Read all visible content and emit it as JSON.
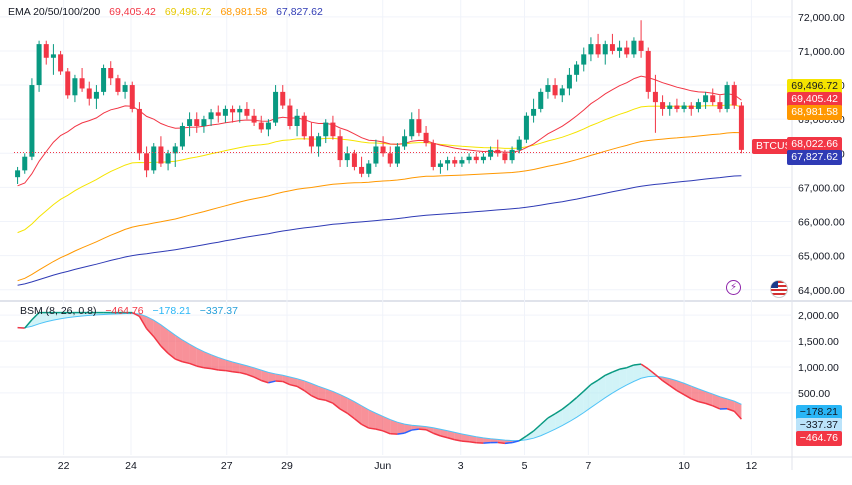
{
  "chart_data": [
    {
      "type": "candlestick",
      "symbol": "BTCUSD",
      "yticks": [
        "72,000.00",
        "71,000.00",
        "70,000.00",
        "69,000.00",
        "68,000.00",
        "67,000.00",
        "66,000.00",
        "65,000.00",
        "64,000.00"
      ],
      "ylim": [
        63700,
        72200
      ],
      "xticks": [
        "22",
        "24",
        "27",
        "29",
        "Jun",
        "3",
        "5",
        "7",
        "10",
        "12"
      ],
      "grid": true,
      "ema_legend": {
        "label": "EMA 20/50/100/200",
        "values": [
          "69,405.42",
          "69,496.72",
          "68,981.58",
          "67,827.62"
        ],
        "colors": [
          "#f23645",
          "#f5e400",
          "#ff9800",
          "#2f3bb5"
        ]
      },
      "price_labels": [
        {
          "text": "69,496.72",
          "bg": "#f5e400",
          "fg": "#131722"
        },
        {
          "text": "69,405.42",
          "bg": "#f23645",
          "fg": "#ffffff"
        },
        {
          "text": "68,981.58",
          "bg": "#ff9800",
          "fg": "#ffffff"
        },
        {
          "text": "68,022.66",
          "bg": "#f23645",
          "fg": "#ffffff"
        },
        {
          "text": "67,827.62",
          "bg": "#2f3bb5",
          "fg": "#ffffff"
        }
      ],
      "last_price": 68022.66,
      "candles": [
        [
          67300,
          67600,
          67100,
          67500
        ],
        [
          67500,
          68000,
          67400,
          67900
        ],
        [
          67900,
          70200,
          67800,
          70000
        ],
        [
          70000,
          71300,
          69800,
          71200
        ],
        [
          71200,
          71300,
          70600,
          70800
        ],
        [
          70800,
          71200,
          70300,
          70900
        ],
        [
          70900,
          71000,
          70300,
          70400
        ],
        [
          70400,
          70500,
          69600,
          69700
        ],
        [
          69700,
          70300,
          69500,
          70200
        ],
        [
          70200,
          70500,
          69800,
          69900
        ],
        [
          69900,
          70100,
          69400,
          69600
        ],
        [
          69600,
          70000,
          69300,
          69800
        ],
        [
          69800,
          70600,
          69700,
          70500
        ],
        [
          70500,
          70700,
          70000,
          70200
        ],
        [
          70200,
          70300,
          69700,
          69800
        ],
        [
          69800,
          70100,
          69600,
          70000
        ],
        [
          70000,
          70100,
          69200,
          69300
        ],
        [
          69300,
          69500,
          67800,
          68000
        ],
        [
          68000,
          68200,
          67300,
          67500
        ],
        [
          67500,
          68300,
          67400,
          68200
        ],
        [
          68200,
          68500,
          67600,
          67700
        ],
        [
          67700,
          68100,
          67500,
          68000
        ],
        [
          68000,
          68300,
          67600,
          68200
        ],
        [
          68200,
          68900,
          68100,
          68800
        ],
        [
          68800,
          69200,
          68500,
          69000
        ],
        [
          69000,
          69200,
          68600,
          68800
        ],
        [
          68800,
          69100,
          68600,
          69000
        ],
        [
          69000,
          69300,
          68800,
          69200
        ],
        [
          69200,
          69400,
          68900,
          69100
        ],
        [
          69100,
          69400,
          68900,
          69300
        ],
        [
          69300,
          69400,
          68900,
          69200
        ],
        [
          69200,
          69400,
          68900,
          69300
        ],
        [
          69300,
          69500,
          69000,
          69100
        ],
        [
          69100,
          69300,
          68800,
          68900
        ],
        [
          68900,
          69100,
          68600,
          68700
        ],
        [
          68700,
          69000,
          68500,
          68900
        ],
        [
          68900,
          70000,
          68800,
          69800
        ],
        [
          69800,
          70000,
          69300,
          69400
        ],
        [
          69400,
          69600,
          68700,
          68800
        ],
        [
          68800,
          69300,
          68500,
          69100
        ],
        [
          69100,
          69200,
          68400,
          68500
        ],
        [
          68500,
          68900,
          68000,
          68200
        ],
        [
          68200,
          68600,
          67900,
          68500
        ],
        [
          68500,
          69000,
          68300,
          68900
        ],
        [
          68900,
          69100,
          68400,
          68500
        ],
        [
          68500,
          68700,
          67600,
          67800
        ],
        [
          67800,
          68200,
          67600,
          68000
        ],
        [
          68000,
          68100,
          67500,
          67600
        ],
        [
          67600,
          67900,
          67300,
          67400
        ],
        [
          67400,
          67800,
          67300,
          67700
        ],
        [
          67700,
          68400,
          67600,
          68200
        ],
        [
          68200,
          68500,
          67900,
          68000
        ],
        [
          68000,
          68200,
          67600,
          67700
        ],
        [
          67700,
          68300,
          67600,
          68200
        ],
        [
          68200,
          68700,
          68100,
          68500
        ],
        [
          68500,
          69200,
          68400,
          69000
        ],
        [
          69000,
          69300,
          68500,
          68600
        ],
        [
          68600,
          68800,
          68200,
          68300
        ],
        [
          68300,
          68400,
          67500,
          67600
        ],
        [
          67600,
          67800,
          67400,
          67700
        ],
        [
          67700,
          67900,
          67500,
          67800
        ],
        [
          67800,
          67900,
          67600,
          67700
        ],
        [
          67700,
          67900,
          67600,
          67800
        ],
        [
          67800,
          68000,
          67700,
          67900
        ],
        [
          67900,
          68000,
          67700,
          67800
        ],
        [
          67800,
          68000,
          67700,
          67900
        ],
        [
          67900,
          68200,
          67800,
          68100
        ],
        [
          68100,
          68400,
          67900,
          68000
        ],
        [
          68000,
          68100,
          67700,
          67800
        ],
        [
          67800,
          68200,
          67700,
          68100
        ],
        [
          68100,
          68500,
          68000,
          68400
        ],
        [
          68400,
          69200,
          68300,
          69100
        ],
        [
          69100,
          69600,
          68900,
          69300
        ],
        [
          69300,
          69900,
          69200,
          69800
        ],
        [
          69800,
          70200,
          69600,
          70000
        ],
        [
          70000,
          70200,
          69600,
          69700
        ],
        [
          69700,
          70000,
          69500,
          69900
        ],
        [
          69900,
          70500,
          69700,
          70300
        ],
        [
          70300,
          70700,
          70100,
          70600
        ],
        [
          70600,
          71100,
          70400,
          70900
        ],
        [
          70900,
          71400,
          70700,
          71200
        ],
        [
          71200,
          71500,
          70800,
          70900
        ],
        [
          70900,
          71300,
          70600,
          71200
        ],
        [
          71200,
          71500,
          70900,
          71000
        ],
        [
          71000,
          71300,
          70800,
          71100
        ],
        [
          71100,
          71300,
          70800,
          70900
        ],
        [
          70900,
          71400,
          70800,
          71300
        ],
        [
          71300,
          71900,
          70800,
          71000
        ],
        [
          71000,
          71100,
          69600,
          69800
        ],
        [
          69800,
          70300,
          68600,
          69500
        ],
        [
          69500,
          69700,
          69100,
          69300
        ],
        [
          69300,
          69500,
          69100,
          69400
        ],
        [
          69400,
          69600,
          69200,
          69300
        ],
        [
          69300,
          69500,
          69200,
          69400
        ],
        [
          69400,
          69500,
          69100,
          69300
        ],
        [
          69300,
          69600,
          69200,
          69500
        ],
        [
          69500,
          69800,
          69300,
          69700
        ],
        [
          69700,
          69900,
          69400,
          69500
        ],
        [
          69500,
          69700,
          69200,
          69300
        ],
        [
          69300,
          70100,
          69200,
          70000
        ],
        [
          70000,
          70100,
          69300,
          69400
        ],
        [
          69400,
          69500,
          68000,
          68100
        ]
      ]
    },
    {
      "type": "line",
      "title": "BSM (8, 26, 0.8)",
      "legend_values": [
        "−464.76",
        "−178.21",
        "−337.37"
      ],
      "legend_colors": [
        "#f23645",
        "#29b6f6",
        "#26a0da"
      ],
      "yticks": [
        "2,000.00",
        "1,500.00",
        "1,000.00",
        "500.00"
      ],
      "ylim": [
        -700,
        2100
      ],
      "price_labels": [
        {
          "text": "−178.21",
          "bg": "#29b6f6",
          "fg": "#131722"
        },
        {
          "text": "−337.37",
          "bg": "#bbe3fa",
          "fg": "#131722"
        },
        {
          "text": "−464.76",
          "bg": "#f23645",
          "fg": "#ffffff"
        }
      ]
    }
  ]
}
